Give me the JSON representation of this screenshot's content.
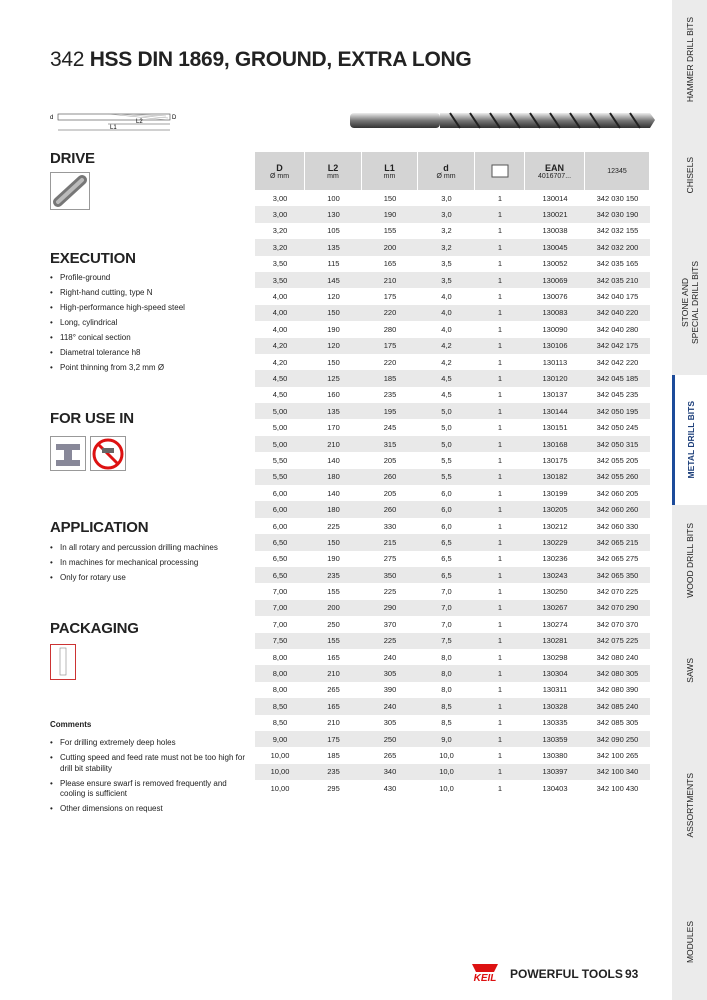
{
  "header": {
    "number": "342",
    "title": "HSS DIN 1869, GROUND, EXTRA LONG"
  },
  "diagram": {
    "labels": [
      "d",
      "L2",
      "L1",
      "D"
    ]
  },
  "sidebar": {
    "tabs": [
      "HAMMER DRILL BITS",
      "CHISELS",
      "STONE AND\nSPECIAL DRILL BITS",
      "METAL DRILL BITS",
      "WOOD DRILL BITS",
      "SAWS",
      "ASSORTMENTS",
      "MODULES"
    ],
    "active": 3
  },
  "sections": {
    "drive": {
      "title": "DRIVE"
    },
    "execution": {
      "title": "EXECUTION",
      "items": [
        "Profile-ground",
        "Right-hand cutting, type N",
        "High-performance high-speed steel",
        "Long, cylindrical",
        "118° conical section",
        "Diametral tolerance h8",
        "Point thinning from 3,2 mm Ø"
      ]
    },
    "for_use_in": {
      "title": "FOR USE IN"
    },
    "application": {
      "title": "APPLICATION",
      "items": [
        "In all rotary and percussion drilling machines",
        "In machines for mechanical processing",
        "Only for rotary use"
      ]
    },
    "packaging": {
      "title": "PACKAGING"
    },
    "comments": {
      "title": "Comments",
      "items": [
        "For drilling extremely deep holes",
        "Cutting speed and feed rate must not be too high for drill bit stability",
        "Please ensure swarf is removed frequently and cooling is sufficient",
        "Other dimensions on request"
      ]
    }
  },
  "table": {
    "headers": [
      {
        "label": "D",
        "unit": "Ø mm"
      },
      {
        "label": "L2",
        "unit": "mm"
      },
      {
        "label": "L1",
        "unit": "mm"
      },
      {
        "label": "d",
        "unit": "Ø mm"
      },
      {
        "label": "",
        "unit": ""
      },
      {
        "label": "EAN",
        "unit": "4016707..."
      },
      {
        "label": "",
        "unit": "12345"
      }
    ],
    "rows": [
      [
        "3,00",
        "100",
        "150",
        "3,0",
        "1",
        "130014",
        "342 030 150"
      ],
      [
        "3,00",
        "130",
        "190",
        "3,0",
        "1",
        "130021",
        "342 030 190"
      ],
      [
        "3,20",
        "105",
        "155",
        "3,2",
        "1",
        "130038",
        "342 032 155"
      ],
      [
        "3,20",
        "135",
        "200",
        "3,2",
        "1",
        "130045",
        "342 032 200"
      ],
      [
        "3,50",
        "115",
        "165",
        "3,5",
        "1",
        "130052",
        "342 035 165"
      ],
      [
        "3,50",
        "145",
        "210",
        "3,5",
        "1",
        "130069",
        "342 035 210"
      ],
      [
        "4,00",
        "120",
        "175",
        "4,0",
        "1",
        "130076",
        "342 040 175"
      ],
      [
        "4,00",
        "150",
        "220",
        "4,0",
        "1",
        "130083",
        "342 040 220"
      ],
      [
        "4,00",
        "190",
        "280",
        "4,0",
        "1",
        "130090",
        "342 040 280"
      ],
      [
        "4,20",
        "120",
        "175",
        "4,2",
        "1",
        "130106",
        "342 042 175"
      ],
      [
        "4,20",
        "150",
        "220",
        "4,2",
        "1",
        "130113",
        "342 042 220"
      ],
      [
        "4,50",
        "125",
        "185",
        "4,5",
        "1",
        "130120",
        "342 045 185"
      ],
      [
        "4,50",
        "160",
        "235",
        "4,5",
        "1",
        "130137",
        "342 045 235"
      ],
      [
        "5,00",
        "135",
        "195",
        "5,0",
        "1",
        "130144",
        "342 050 195"
      ],
      [
        "5,00",
        "170",
        "245",
        "5,0",
        "1",
        "130151",
        "342 050 245"
      ],
      [
        "5,00",
        "210",
        "315",
        "5,0",
        "1",
        "130168",
        "342 050 315"
      ],
      [
        "5,50",
        "140",
        "205",
        "5,5",
        "1",
        "130175",
        "342 055 205"
      ],
      [
        "5,50",
        "180",
        "260",
        "5,5",
        "1",
        "130182",
        "342 055 260"
      ],
      [
        "6,00",
        "140",
        "205",
        "6,0",
        "1",
        "130199",
        "342 060 205"
      ],
      [
        "6,00",
        "180",
        "260",
        "6,0",
        "1",
        "130205",
        "342 060 260"
      ],
      [
        "6,00",
        "225",
        "330",
        "6,0",
        "1",
        "130212",
        "342 060 330"
      ],
      [
        "6,50",
        "150",
        "215",
        "6,5",
        "1",
        "130229",
        "342 065 215"
      ],
      [
        "6,50",
        "190",
        "275",
        "6,5",
        "1",
        "130236",
        "342 065 275"
      ],
      [
        "6,50",
        "235",
        "350",
        "6,5",
        "1",
        "130243",
        "342 065 350"
      ],
      [
        "7,00",
        "155",
        "225",
        "7,0",
        "1",
        "130250",
        "342 070 225"
      ],
      [
        "7,00",
        "200",
        "290",
        "7,0",
        "1",
        "130267",
        "342 070 290"
      ],
      [
        "7,00",
        "250",
        "370",
        "7,0",
        "1",
        "130274",
        "342 070 370"
      ],
      [
        "7,50",
        "155",
        "225",
        "7,5",
        "1",
        "130281",
        "342 075 225"
      ],
      [
        "8,00",
        "165",
        "240",
        "8,0",
        "1",
        "130298",
        "342 080 240"
      ],
      [
        "8,00",
        "210",
        "305",
        "8,0",
        "1",
        "130304",
        "342 080 305"
      ],
      [
        "8,00",
        "265",
        "390",
        "8,0",
        "1",
        "130311",
        "342 080 390"
      ],
      [
        "8,50",
        "165",
        "240",
        "8,5",
        "1",
        "130328",
        "342 085 240"
      ],
      [
        "8,50",
        "210",
        "305",
        "8,5",
        "1",
        "130335",
        "342 085 305"
      ],
      [
        "9,00",
        "175",
        "250",
        "9,0",
        "1",
        "130359",
        "342 090 250"
      ],
      [
        "10,00",
        "185",
        "265",
        "10,0",
        "1",
        "130380",
        "342 100 265"
      ],
      [
        "10,00",
        "235",
        "340",
        "10,0",
        "1",
        "130397",
        "342 100 340"
      ],
      [
        "10,00",
        "295",
        "430",
        "10,0",
        "1",
        "130403",
        "342 100 430"
      ]
    ]
  },
  "footer": {
    "logo": "KEIL",
    "slogan": "POWERFUL TOOLS",
    "page": "93"
  }
}
